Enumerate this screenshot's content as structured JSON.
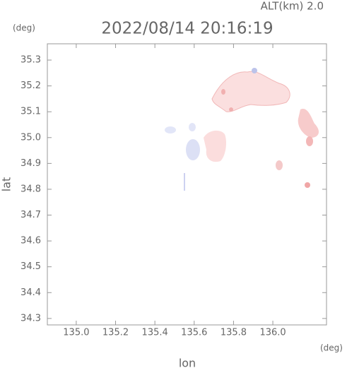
{
  "chart_data": {
    "type": "map",
    "title": "2022/08/14 20:16:19",
    "subtitle": "ALT(km) 2.0",
    "y_unit": "(deg)",
    "x_unit": "(deg)",
    "xlabel": "lon",
    "ylabel": "lat",
    "xlim": [
      134.853,
      136.273
    ],
    "ylim": [
      34.275,
      35.363
    ],
    "xticks": [
      {
        "value": 135.0,
        "label": "135.0"
      },
      135.2,
      135.4,
      135.6,
      135.8,
      {
        "value": 136.0,
        "label": "136.0"
      }
    ],
    "yticks": [
      34.3,
      34.4,
      34.5,
      34.6,
      34.7,
      34.8,
      34.9,
      {
        "value": 35.0,
        "label": "35.0"
      },
      35.1,
      35.2,
      35.3
    ]
  }
}
